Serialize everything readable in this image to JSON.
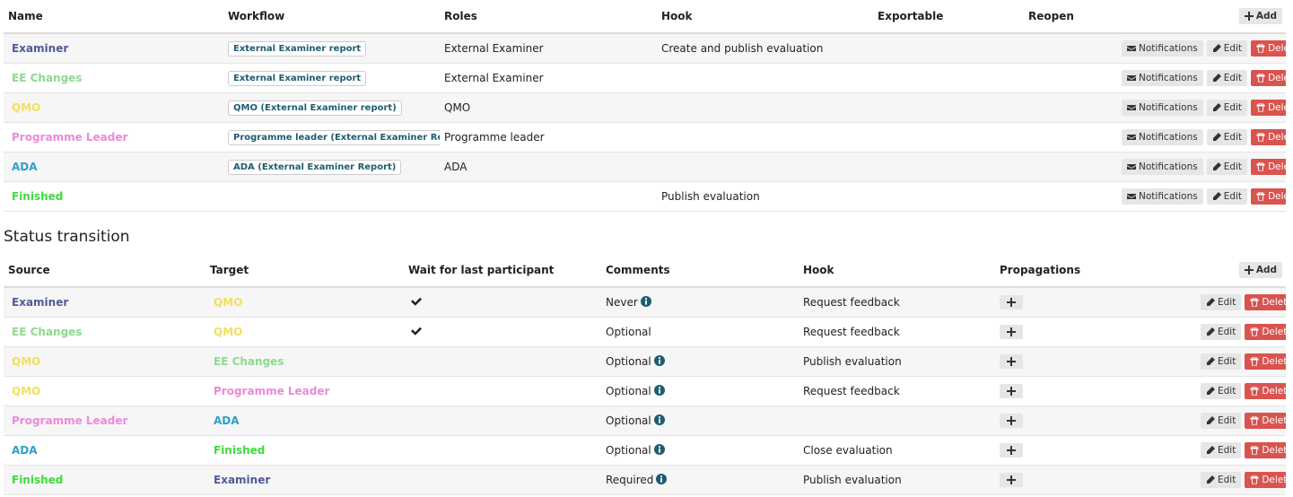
{
  "statuses": {
    "headers": [
      "Name",
      "Workflow",
      "Roles",
      "Hook",
      "Exportable",
      "Reopen"
    ],
    "add": "Add",
    "rows": [
      {
        "name": "Examiner",
        "color": "#4e5a99",
        "workflow": "External Examiner report",
        "roles": "External Examiner",
        "hook": "Create and publish evaluation"
      },
      {
        "name": "EE Changes",
        "color": "#8fd98f",
        "workflow": "External Examiner report",
        "roles": "External Examiner"
      },
      {
        "name": "QMO",
        "color": "#f2e05a",
        "workflow": "QMO (External Examiner report)",
        "roles": "QMO"
      },
      {
        "name": "Programme Leader",
        "color": "#ec8ad9",
        "workflow": "Programme leader (External Examiner Report)",
        "roles": "Programme leader"
      },
      {
        "name": "ADA",
        "color": "#2ea0c8",
        "workflow": "ADA (External Examiner Report)",
        "roles": "ADA"
      },
      {
        "name": "Finished",
        "color": "#3bdc3b",
        "hook": "Publish evaluation"
      }
    ]
  },
  "actions": {
    "notifications": "Notifications",
    "edit": "Edit",
    "delete": "Delete"
  },
  "transitions": {
    "title": "Status transition",
    "headers": [
      "Source",
      "Target",
      "Wait for last participant",
      "Comments",
      "Hook",
      "Propagations"
    ],
    "add": "Add",
    "rows": [
      {
        "source": "Examiner",
        "target": "QMO",
        "wait": true,
        "comments": "Never",
        "info": true,
        "hook": "Request feedback"
      },
      {
        "source": "EE Changes",
        "target": "QMO",
        "wait": true,
        "comments": "Optional",
        "info": false,
        "hook": "Request feedback"
      },
      {
        "source": "QMO",
        "target": "EE Changes",
        "wait": false,
        "comments": "Optional",
        "info": true,
        "hook": "Publish evaluation"
      },
      {
        "source": "QMO",
        "target": "Programme Leader",
        "wait": false,
        "comments": "Optional",
        "info": true,
        "hook": "Request feedback"
      },
      {
        "source": "Programme Leader",
        "target": "ADA",
        "wait": false,
        "comments": "Optional",
        "info": true
      },
      {
        "source": "ADA",
        "target": "Finished",
        "wait": false,
        "comments": "Optional",
        "info": true,
        "hook": "Close evaluation"
      },
      {
        "source": "Finished",
        "target": "Examiner",
        "wait": false,
        "comments": "Required",
        "info": true,
        "hook": "Publish evaluation"
      }
    ]
  }
}
